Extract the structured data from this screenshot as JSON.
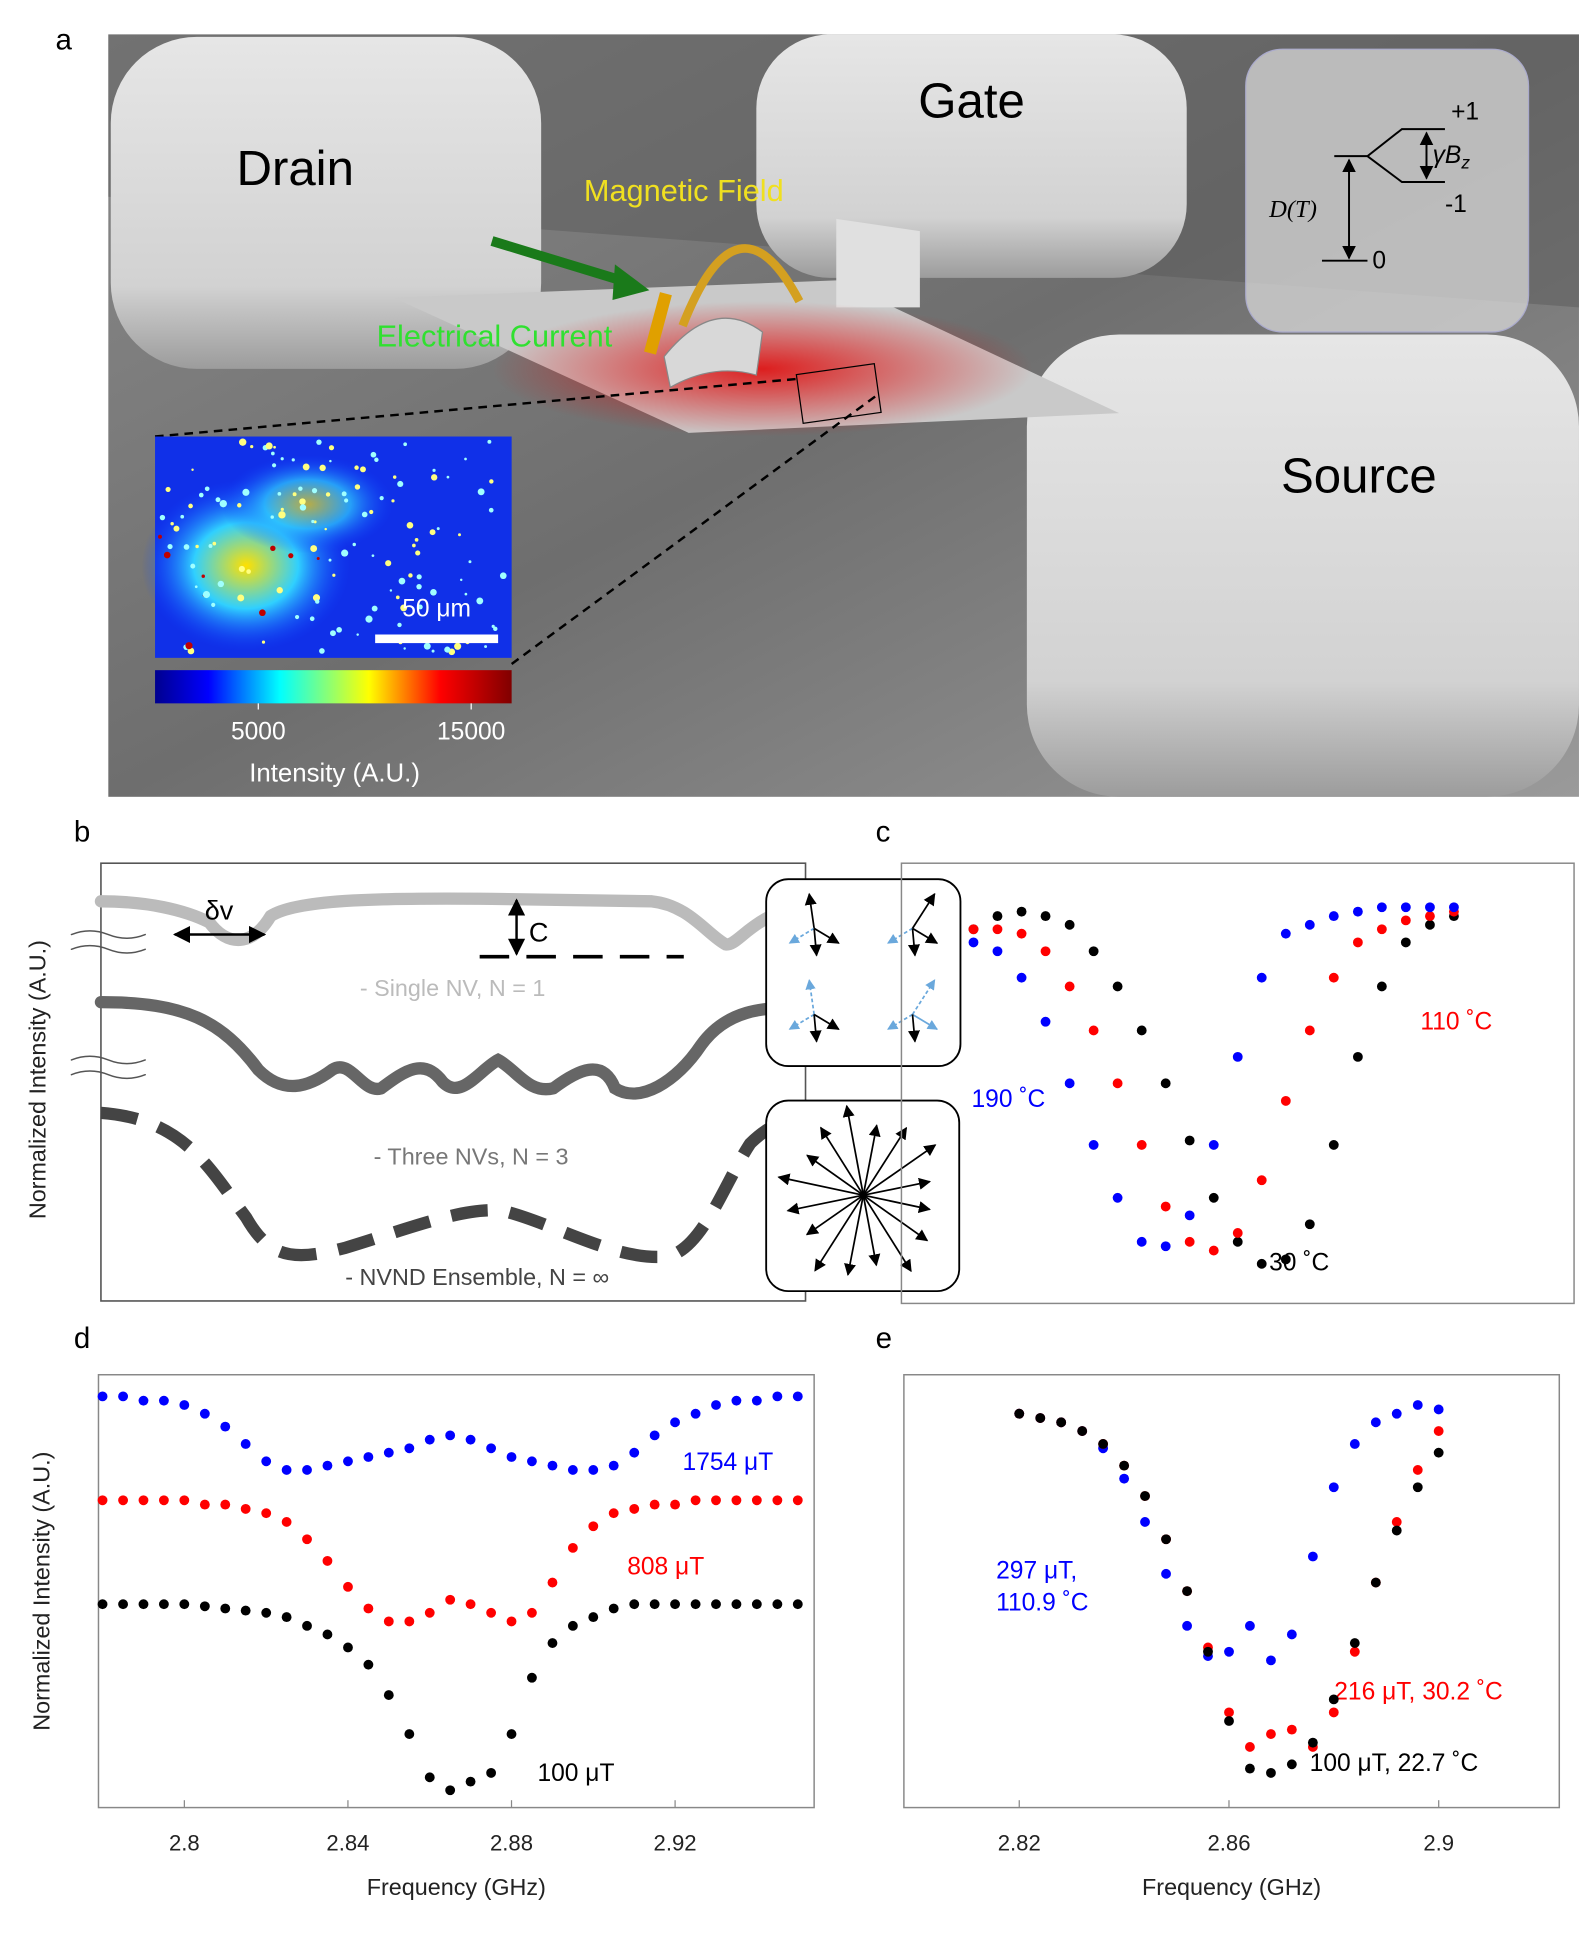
{
  "panel_a": {
    "letter": "a",
    "pads": [
      "Drain",
      "Gate",
      "Source"
    ],
    "field_label": "Magnetic Field",
    "current_label": "Electrical Current",
    "levels": {
      "plus": "+1",
      "minus": "-1",
      "zero": "0",
      "split": "D(T)",
      "zeeman": "γB",
      "zeeman_sub": "z"
    },
    "scale_bar": "50 μm",
    "colorbar": {
      "lim": [
        150,
        16900
      ],
      "ticks": [
        5000,
        15000
      ],
      "label": "Intensity  (A.U.)"
    }
  },
  "panel_b": {
    "letter": "b",
    "ylabel": "Normalized Intensity (A.U.)",
    "linewidth_label": "δv",
    "contrast_label": "C",
    "curve_labels": [
      "- Single NV, N = 1",
      "- Three NVs, N = 3",
      "- NVND Ensemble, N = ∞"
    ]
  },
  "letters": [
    "c",
    "d",
    "e"
  ],
  "chart_data": [
    {
      "type": "scatter",
      "x": [
        2.815,
        2.82,
        2.825,
        2.83,
        2.835,
        2.84,
        2.845,
        2.85,
        2.855,
        2.86,
        2.865,
        2.87,
        2.875,
        2.88,
        2.885,
        2.89,
        2.895,
        2.9,
        2.905,
        2.91,
        2.915
      ],
      "xlim": [
        2.8,
        2.94
      ],
      "ylim": [
        0,
        1
      ],
      "series": [
        {
          "name": "30 ˚C",
          "color": "#000000",
          "values": [
            0.85,
            0.88,
            0.89,
            0.88,
            0.86,
            0.8,
            0.72,
            0.62,
            0.5,
            0.37,
            0.24,
            0.14,
            0.09,
            0.1,
            0.18,
            0.36,
            0.56,
            0.72,
            0.82,
            0.86,
            0.88
          ]
        },
        {
          "name": "110 ˚C",
          "color": "#ff0000",
          "values": [
            0.85,
            0.85,
            0.84,
            0.8,
            0.72,
            0.62,
            0.5,
            0.36,
            0.22,
            0.14,
            0.12,
            0.16,
            0.28,
            0.46,
            0.62,
            0.74,
            0.82,
            0.85,
            0.87,
            0.88,
            0.89
          ]
        },
        {
          "name": "190 ˚C",
          "color": "#0000ff",
          "values": [
            0.82,
            0.8,
            0.74,
            0.64,
            0.5,
            0.36,
            0.24,
            0.14,
            0.13,
            0.2,
            0.36,
            0.56,
            0.74,
            0.84,
            0.86,
            0.88,
            0.89,
            0.9,
            0.9,
            0.9,
            0.9
          ]
        }
      ]
    },
    {
      "type": "scatter",
      "x": [
        2.78,
        2.785,
        2.79,
        2.795,
        2.8,
        2.805,
        2.81,
        2.815,
        2.82,
        2.825,
        2.83,
        2.835,
        2.84,
        2.845,
        2.85,
        2.855,
        2.86,
        2.865,
        2.87,
        2.875,
        2.88,
        2.885,
        2.89,
        2.895,
        2.9,
        2.905,
        2.91,
        2.915,
        2.92,
        2.925,
        2.93,
        2.935,
        2.94,
        2.945,
        2.95
      ],
      "xlim": [
        2.779,
        2.954
      ],
      "ylim": [
        0,
        1
      ],
      "xticks": [
        2.8,
        2.84,
        2.88,
        2.92
      ],
      "xlabel": "Frequency (GHz)",
      "ylabel": "Normalized Intensity (A.U.)",
      "series": [
        {
          "name": "1754 μT",
          "color": "#0000ff",
          "values": [
            0.95,
            0.95,
            0.94,
            0.94,
            0.93,
            0.91,
            0.88,
            0.84,
            0.8,
            0.78,
            0.78,
            0.79,
            0.8,
            0.81,
            0.82,
            0.83,
            0.85,
            0.86,
            0.85,
            0.83,
            0.81,
            0.8,
            0.79,
            0.78,
            0.78,
            0.79,
            0.82,
            0.86,
            0.89,
            0.91,
            0.93,
            0.94,
            0.94,
            0.95,
            0.95
          ]
        },
        {
          "name": "808 μT",
          "color": "#ff0000",
          "values": [
            0.71,
            0.71,
            0.71,
            0.71,
            0.71,
            0.7,
            0.7,
            0.69,
            0.68,
            0.66,
            0.62,
            0.57,
            0.51,
            0.46,
            0.43,
            0.43,
            0.45,
            0.48,
            0.47,
            0.45,
            0.43,
            0.45,
            0.52,
            0.6,
            0.65,
            0.68,
            0.69,
            0.7,
            0.7,
            0.71,
            0.71,
            0.71,
            0.71,
            0.71,
            0.71
          ]
        },
        {
          "name": "100 μT",
          "color": "#000000",
          "values": [
            0.47,
            0.47,
            0.47,
            0.47,
            0.47,
            0.465,
            0.46,
            0.455,
            0.45,
            0.44,
            0.42,
            0.4,
            0.37,
            0.33,
            0.26,
            0.17,
            0.07,
            0.04,
            0.06,
            0.08,
            0.17,
            0.3,
            0.38,
            0.42,
            0.44,
            0.46,
            0.47,
            0.47,
            0.47,
            0.47,
            0.47,
            0.47,
            0.47,
            0.47,
            0.47
          ]
        }
      ]
    },
    {
      "type": "scatter",
      "x": [
        2.82,
        2.824,
        2.828,
        2.832,
        2.836,
        2.84,
        2.844,
        2.848,
        2.852,
        2.856,
        2.86,
        2.864,
        2.868,
        2.872,
        2.876,
        2.88,
        2.884,
        2.888,
        2.892,
        2.896,
        2.9
      ],
      "xlim": [
        2.798,
        2.923
      ],
      "ylim": [
        0,
        1
      ],
      "xticks": [
        2.82,
        2.86,
        2.9
      ],
      "xlabel": "Frequency (GHz)",
      "series": [
        {
          "name": "297 μT, 110.9 ˚C",
          "wrap": true,
          "color": "#0000ff",
          "values": [
            0.91,
            0.9,
            0.89,
            0.87,
            0.83,
            0.76,
            0.66,
            0.54,
            0.42,
            0.35,
            0.36,
            0.42,
            0.34,
            0.4,
            0.58,
            0.74,
            0.84,
            0.89,
            0.91,
            0.93,
            0.92
          ]
        },
        {
          "name": "216 μT, 30.2 ˚C",
          "color": "#ff0000",
          "values": [
            0.91,
            0.9,
            0.89,
            0.87,
            0.84,
            0.79,
            0.72,
            0.62,
            0.5,
            0.37,
            0.22,
            0.14,
            0.17,
            0.18,
            0.14,
            0.22,
            0.36,
            0.52,
            0.66,
            0.78,
            0.87
          ]
        },
        {
          "name": "100 μT, 22.7 ˚C",
          "color": "#000000",
          "values": [
            0.91,
            0.9,
            0.89,
            0.87,
            0.84,
            0.79,
            0.72,
            0.62,
            0.5,
            0.36,
            0.2,
            0.09,
            0.08,
            0.1,
            0.15,
            0.25,
            0.38,
            0.52,
            0.64,
            0.74,
            0.82
          ]
        }
      ]
    }
  ]
}
